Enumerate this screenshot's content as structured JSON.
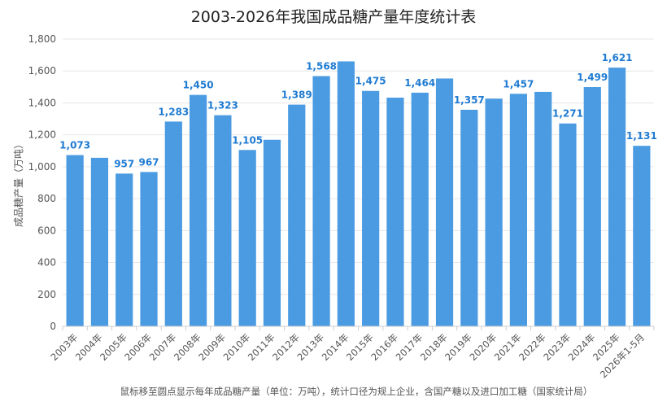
{
  "chart_data": {
    "type": "bar",
    "title": "2003-2026年我国成品糖产量年度统计表",
    "ylabel": "成品糖产量（万吨）",
    "xlabel": "",
    "ylim": [
      0,
      1800
    ],
    "yticks": [
      0,
      200,
      400,
      600,
      800,
      1000,
      1200,
      1400,
      1600,
      1800
    ],
    "grid": true,
    "legend": "none",
    "bar_color": "#4a9be2",
    "label_color": "#1f7bd2",
    "categories": [
      "2003年",
      "2004年",
      "2005年",
      "2006年",
      "2007年",
      "2008年",
      "2009年",
      "2010年",
      "2011年",
      "2012年",
      "2013年",
      "2014年",
      "2015年",
      "2016年",
      "2017年",
      "2018年",
      "2019年",
      "2020年",
      "2021年",
      "2022年",
      "2023年",
      "2024年",
      "2025年",
      "2026年1-5月"
    ],
    "values": [
      1073,
      1056,
      957,
      967,
      1283,
      1450,
      1323,
      1105,
      1169,
      1389,
      1568,
      1660,
      1475,
      1433,
      1464,
      1553,
      1357,
      1427,
      1457,
      1469,
      1271,
      1499,
      1621,
      1131
    ],
    "labeled": [
      true,
      false,
      true,
      true,
      true,
      true,
      true,
      true,
      false,
      true,
      true,
      false,
      true,
      false,
      true,
      false,
      true,
      false,
      true,
      false,
      true,
      true,
      true,
      true
    ]
  },
  "footnote": "鼠标移至圆点显示每年成品糖产量（单位：万吨），统计口径为规上企业，含国产糖以及进口加工糖（国家统计局）"
}
